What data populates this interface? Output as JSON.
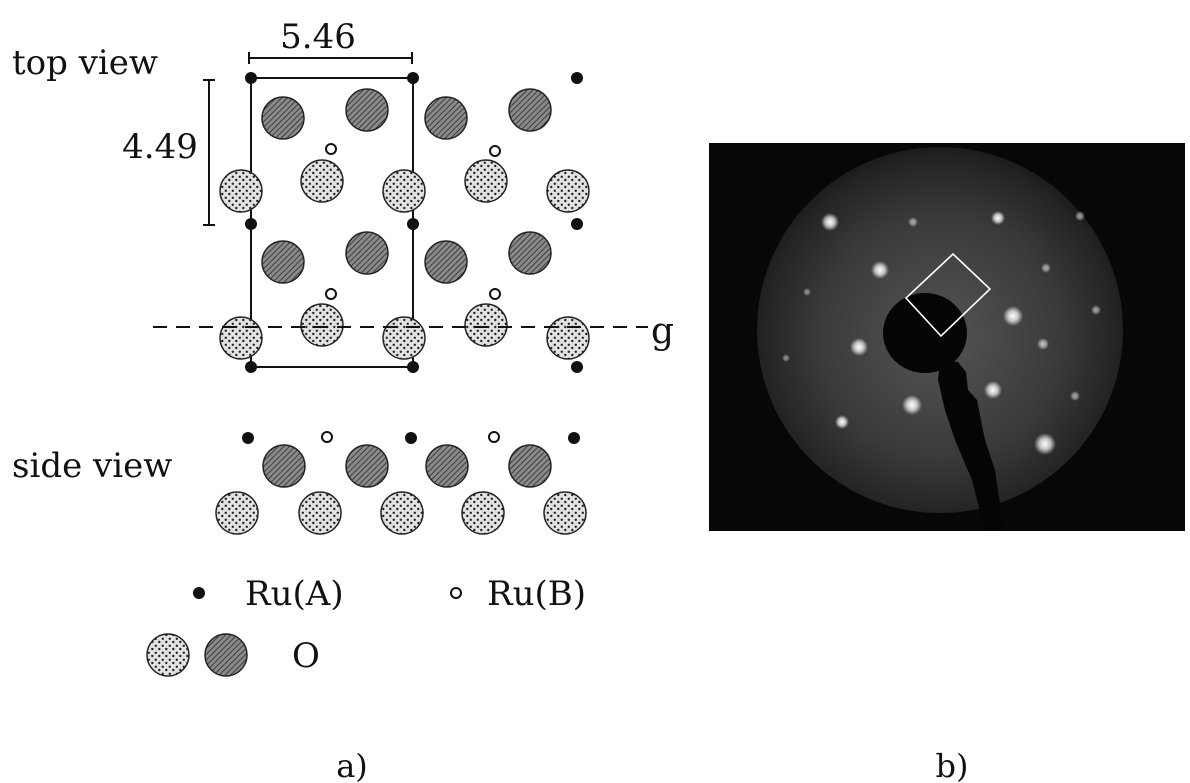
{
  "panel_a": {
    "top_view_label": "top view",
    "side_view_label": "side view",
    "dim_width": "5.46",
    "dim_height": "4.49",
    "glide_label": "g",
    "legend": {
      "ru_a": "Ru(A)",
      "ru_b": "Ru(B)",
      "oxygen": "O"
    },
    "caption": "a)"
  },
  "panel_b": {
    "caption": "b)"
  },
  "colors": {
    "background": "#ffffff",
    "ink": "#111111",
    "oxygen_dark": "#6f6f6f",
    "oxygen_light": "#d6d6d6",
    "leed_screen": "#0a0a0a",
    "leed_glow": "#3c3c3c",
    "leed_spot": "#ffffff"
  }
}
